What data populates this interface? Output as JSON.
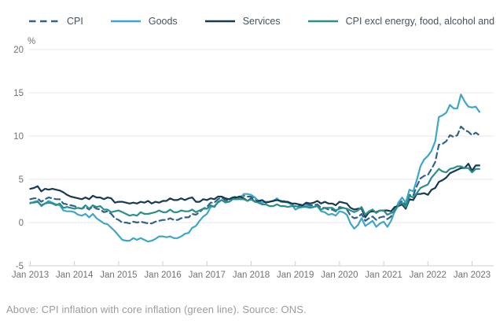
{
  "legend": [
    {
      "label": "CPI",
      "color": "#31628c",
      "dashed": true
    },
    {
      "label": "Goods",
      "color": "#3fa5c9",
      "dashed": false
    },
    {
      "label": "Services",
      "color": "#173a52",
      "dashed": false
    },
    {
      "label": "CPI excl energy, food, alcohol and tobacco",
      "color": "#2a8f88",
      "dashed": false
    }
  ],
  "axis": {
    "y_unit": "%",
    "y_ticks": [
      20,
      15,
      10,
      5,
      0,
      -5
    ],
    "ylim": [
      -5,
      20
    ],
    "x_ticks": [
      "Jan 2013",
      "Jan 2014",
      "Jan 2015",
      "Jan 2016",
      "Jan 2017",
      "Jan 2018",
      "Jan 2019",
      "Jan 2020",
      "Jan 2021",
      "Jan 2022",
      "Jan 2023"
    ],
    "grid_color": "#e9e9e9",
    "axis_color": "#cfcfcf",
    "tick_text_color": "#6e7277"
  },
  "caption": "Above: CPI inflation with core inflation (green line). Source: ONS.",
  "chart_data": {
    "type": "line",
    "title": "",
    "xlabel": "",
    "ylabel": "%",
    "x_start": "2013-01",
    "x_end": "2023-03",
    "x_interval": "monthly",
    "ylim": [
      -5,
      20
    ],
    "grid": true,
    "legend_position": "top",
    "series": [
      {
        "name": "CPI",
        "color": "#31628c",
        "dashed": true,
        "values": [
          2.7,
          2.8,
          2.8,
          2.4,
          2.7,
          2.9,
          2.8,
          2.7,
          2.7,
          2.2,
          2.1,
          2.0,
          1.9,
          1.7,
          1.6,
          1.8,
          1.5,
          1.9,
          1.6,
          1.5,
          1.2,
          1.3,
          1.0,
          0.5,
          0.3,
          0.0,
          0.0,
          -0.1,
          0.1,
          0.0,
          0.1,
          0.0,
          -0.1,
          -0.1,
          0.1,
          0.2,
          0.3,
          0.3,
          0.5,
          0.3,
          0.3,
          0.5,
          0.6,
          0.6,
          1.0,
          0.9,
          1.2,
          1.6,
          1.8,
          2.3,
          2.3,
          2.7,
          2.9,
          2.6,
          2.6,
          2.9,
          3.0,
          3.0,
          3.1,
          3.0,
          3.0,
          2.7,
          2.5,
          2.4,
          2.4,
          2.4,
          2.5,
          2.7,
          2.4,
          2.4,
          2.3,
          2.1,
          1.8,
          1.9,
          1.9,
          2.1,
          2.0,
          2.0,
          2.1,
          1.7,
          1.7,
          1.5,
          1.5,
          1.3,
          1.8,
          1.7,
          1.5,
          0.8,
          0.5,
          0.6,
          1.0,
          0.2,
          0.5,
          0.7,
          0.3,
          0.6,
          0.7,
          0.4,
          0.7,
          1.5,
          2.1,
          2.5,
          2.0,
          3.2,
          3.1,
          4.2,
          5.1,
          5.4,
          5.5,
          6.2,
          7.0,
          9.0,
          9.1,
          9.4,
          10.1,
          9.9,
          10.1,
          11.1,
          10.7,
          10.5,
          10.1,
          10.4,
          10.1
        ]
      },
      {
        "name": "Goods",
        "color": "#3fa5c9",
        "dashed": false,
        "values": [
          2.2,
          2.4,
          2.5,
          1.9,
          2.2,
          2.5,
          2.3,
          2.1,
          2.0,
          1.4,
          1.3,
          1.3,
          1.2,
          0.9,
          0.8,
          1.0,
          0.6,
          1.0,
          0.5,
          0.2,
          -0.1,
          -0.2,
          -0.6,
          -1.0,
          -1.5,
          -2.0,
          -2.1,
          -2.1,
          -1.8,
          -2.0,
          -1.8,
          -2.0,
          -2.2,
          -2.1,
          -1.9,
          -1.6,
          -1.6,
          -1.7,
          -1.6,
          -1.8,
          -1.8,
          -1.6,
          -1.3,
          -1.2,
          -0.6,
          -0.4,
          0.2,
          0.7,
          1.0,
          1.8,
          1.9,
          2.3,
          2.6,
          2.3,
          2.4,
          2.7,
          2.9,
          2.8,
          3.3,
          3.3,
          3.2,
          2.9,
          2.5,
          2.3,
          2.4,
          2.4,
          2.5,
          2.8,
          2.4,
          2.5,
          2.3,
          2.1,
          1.5,
          1.7,
          1.8,
          2.0,
          1.8,
          1.8,
          1.9,
          1.3,
          1.2,
          0.9,
          1.0,
          0.8,
          1.3,
          1.2,
          0.9,
          -0.1,
          -0.7,
          -0.3,
          0.5,
          -0.4,
          -0.1,
          0.2,
          -0.5,
          -0.1,
          0.1,
          -0.5,
          0.2,
          1.3,
          2.3,
          2.9,
          2.3,
          3.8,
          3.6,
          4.9,
          6.5,
          7.3,
          7.7,
          8.3,
          9.4,
          12.2,
          12.4,
          12.7,
          13.6,
          13.2,
          13.2,
          14.8,
          14.0,
          13.4,
          13.3,
          13.4,
          12.8
        ]
      },
      {
        "name": "Services",
        "color": "#173a52",
        "dashed": false,
        "values": [
          3.9,
          4.0,
          4.2,
          3.6,
          3.9,
          3.8,
          3.9,
          3.8,
          3.7,
          3.5,
          3.2,
          3.0,
          2.9,
          2.8,
          2.7,
          2.9,
          2.7,
          3.1,
          2.9,
          2.9,
          2.7,
          2.9,
          2.8,
          2.3,
          2.4,
          2.4,
          2.3,
          2.2,
          2.3,
          2.2,
          2.4,
          2.3,
          2.5,
          2.2,
          2.4,
          2.3,
          2.5,
          2.5,
          2.8,
          2.6,
          2.6,
          2.8,
          2.6,
          2.8,
          2.9,
          2.4,
          2.4,
          2.7,
          2.6,
          2.8,
          2.7,
          3.0,
          3.0,
          2.8,
          2.7,
          2.9,
          2.9,
          3.0,
          2.8,
          2.5,
          2.8,
          2.4,
          2.5,
          2.6,
          2.3,
          2.4,
          2.5,
          2.6,
          2.5,
          2.4,
          2.4,
          2.2,
          2.2,
          2.1,
          2.0,
          2.3,
          2.2,
          2.3,
          2.5,
          2.2,
          2.4,
          2.2,
          2.2,
          2.0,
          2.4,
          2.3,
          2.2,
          1.7,
          1.5,
          1.6,
          1.6,
          0.6,
          1.2,
          1.3,
          1.2,
          1.4,
          1.4,
          1.4,
          1.3,
          1.8,
          1.9,
          2.1,
          1.6,
          2.7,
          2.6,
          3.3,
          3.3,
          3.4,
          3.2,
          3.8,
          4.0,
          4.7,
          4.9,
          5.2,
          5.7,
          5.9,
          6.1,
          6.3,
          6.3,
          6.8,
          6.0,
          6.6,
          6.6
        ]
      },
      {
        "name": "CPI excl energy, food, alcohol and tobacco",
        "color": "#2a8f88",
        "dashed": false,
        "values": [
          2.3,
          2.3,
          2.4,
          2.0,
          2.2,
          2.3,
          2.2,
          2.0,
          2.2,
          1.7,
          1.8,
          1.7,
          1.6,
          1.7,
          1.6,
          2.0,
          1.6,
          2.0,
          1.8,
          1.9,
          1.5,
          1.5,
          1.2,
          1.3,
          1.4,
          1.2,
          1.0,
          0.8,
          0.9,
          0.8,
          1.2,
          1.0,
          1.0,
          1.1,
          1.2,
          1.4,
          1.2,
          1.2,
          1.5,
          1.2,
          1.2,
          1.4,
          1.3,
          1.3,
          1.5,
          1.2,
          1.4,
          1.6,
          1.6,
          2.0,
          1.8,
          2.4,
          2.6,
          2.4,
          2.4,
          2.7,
          2.7,
          2.7,
          2.7,
          2.5,
          2.7,
          2.4,
          2.3,
          2.1,
          2.1,
          1.9,
          1.9,
          2.1,
          1.9,
          1.9,
          1.8,
          1.9,
          1.9,
          1.8,
          1.8,
          1.8,
          1.7,
          1.8,
          1.9,
          1.5,
          1.7,
          1.7,
          1.7,
          1.4,
          1.6,
          1.7,
          1.6,
          1.4,
          1.2,
          1.4,
          1.8,
          0.9,
          1.3,
          1.5,
          1.1,
          1.4,
          1.4,
          0.9,
          1.1,
          1.3,
          2.0,
          2.3,
          1.8,
          3.1,
          2.9,
          3.4,
          4.0,
          4.2,
          4.4,
          5.2,
          5.7,
          6.2,
          5.9,
          5.8,
          6.2,
          6.3,
          6.5,
          6.5,
          6.3,
          6.3,
          5.8,
          6.2,
          6.2
        ]
      }
    ]
  }
}
